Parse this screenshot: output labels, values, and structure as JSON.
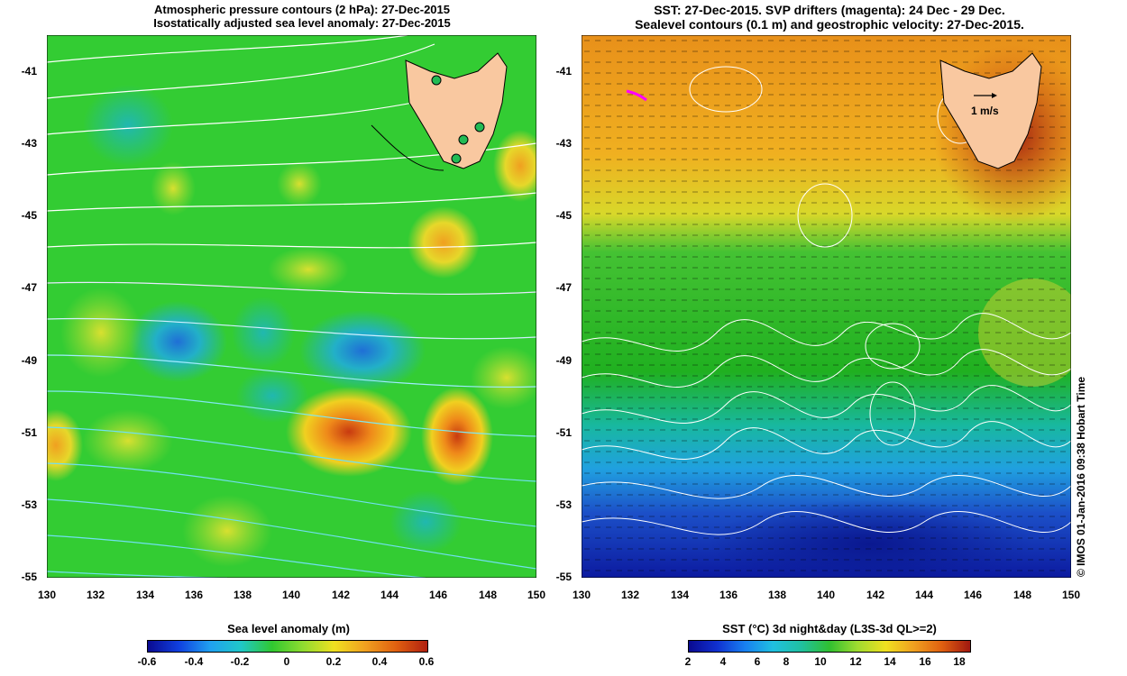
{
  "left_panel": {
    "title_line1": "Atmospheric pressure contours (2 hPa): 27-Dec-2015",
    "title_line2": "Isostatically adjusted sea level anomaly: 27-Dec-2015",
    "y_ticks": [
      "-41",
      "-43",
      "-45",
      "-47",
      "-49",
      "-51",
      "-53",
      "-55"
    ],
    "x_ticks": [
      "130",
      "132",
      "134",
      "136",
      "138",
      "140",
      "142",
      "144",
      "146",
      "148",
      "150"
    ],
    "colorbar_title": "Sea level anomaly (m)",
    "colorbar_ticks": [
      "-0.6",
      "-0.4",
      "-0.2",
      "0",
      "0.2",
      "0.4",
      "0.6"
    ]
  },
  "right_panel": {
    "title_line1": "SST: 27-Dec-2015. SVP drifters (magenta): 24 Dec - 29 Dec.",
    "title_line2": "Sealevel contours (0.1 m) and geostrophic velocity: 27-Dec-2015.",
    "y_ticks": [
      "-41",
      "-43",
      "-45",
      "-47",
      "-49",
      "-51",
      "-53",
      "-55"
    ],
    "x_ticks": [
      "130",
      "132",
      "134",
      "136",
      "138",
      "140",
      "142",
      "144",
      "146",
      "148",
      "150"
    ],
    "velocity_scale_label": "1 m/s",
    "colorbar_title": "SST (°C) 3d night&day (L3S-3d QL>=2)",
    "colorbar_ticks": [
      "2",
      "4",
      "6",
      "8",
      "10",
      "12",
      "14",
      "16",
      "18"
    ]
  },
  "credit": "© IMOS 01-Jan-2016 09:38 Hobart Time",
  "colors": {
    "land": "#f9c8a0",
    "sla_neutral": "#33cc33",
    "drifter": "#ff00ff",
    "tide_gauge": "#22bb55"
  }
}
